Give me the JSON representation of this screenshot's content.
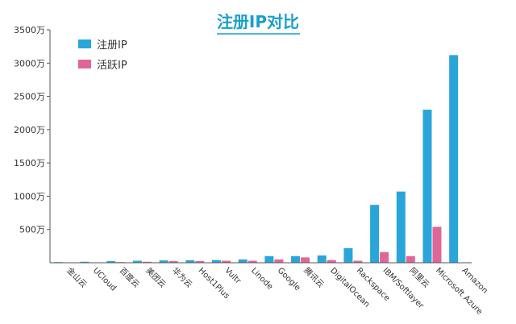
{
  "chart_data": {
    "type": "bar",
    "title": "注册IP对比",
    "xlabel": "",
    "ylabel": "",
    "ylim": [
      0,
      3500
    ],
    "yticks": [
      {
        "value": 500,
        "label": "500万"
      },
      {
        "value": 1000,
        "label": "1000万"
      },
      {
        "value": 1500,
        "label": "1500万"
      },
      {
        "value": 2000,
        "label": "2000万"
      },
      {
        "value": 2500,
        "label": "2500万"
      },
      {
        "value": 3000,
        "label": "3000万"
      },
      {
        "value": 3500,
        "label": "3500万"
      }
    ],
    "categories": [
      "金山云",
      "UCloud",
      "百度云",
      "美团云",
      "华为云",
      "Host1Plus",
      "Vultr",
      "Linode",
      "Google",
      "腾讯云",
      "DigitalOcean",
      "Rackspace",
      "IBM/Softlayer",
      "阿里云",
      "Microsoft Azure",
      "Amazon"
    ],
    "series": [
      {
        "name": "注册IP",
        "color": "#2aa5d8",
        "values": [
          10,
          15,
          25,
          30,
          35,
          38,
          40,
          50,
          100,
          100,
          110,
          220,
          870,
          1070,
          2300,
          3120
        ]
      },
      {
        "name": "活跃IP",
        "color": "#e0669a",
        "values": [
          5,
          5,
          10,
          15,
          25,
          25,
          30,
          30,
          50,
          80,
          40,
          30,
          160,
          100,
          540,
          0
        ]
      }
    ],
    "legend": "top-left",
    "grid": false
  }
}
